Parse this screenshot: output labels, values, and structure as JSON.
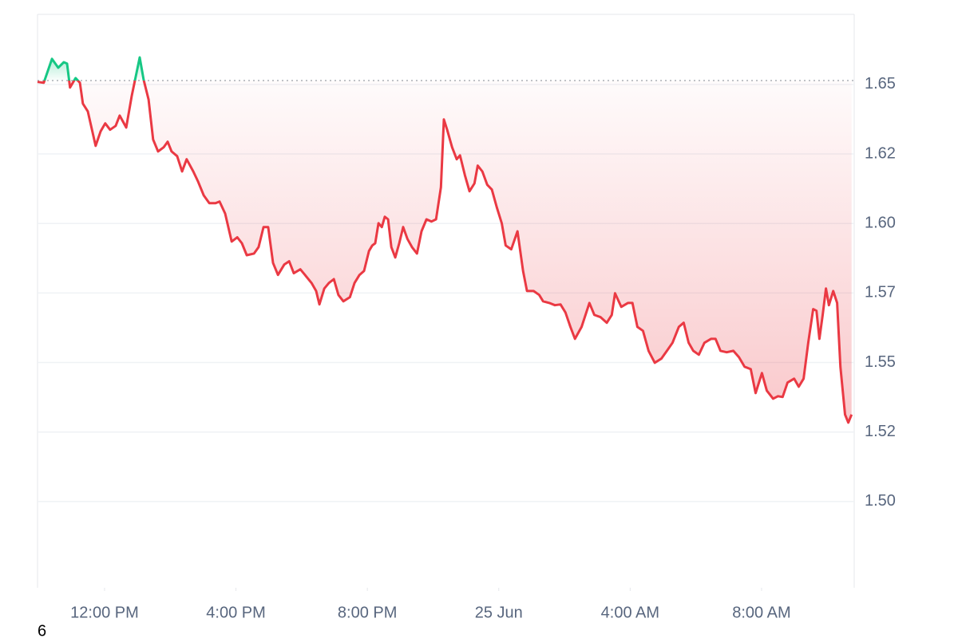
{
  "chart_data": {
    "type": "line",
    "x": [
      9.96,
      10.15,
      10.4,
      10.59,
      10.76,
      10.86,
      10.95,
      11.12,
      11.25,
      11.34,
      11.49,
      11.73,
      11.88,
      12.02,
      12.17,
      12.34,
      12.46,
      12.66,
      12.83,
      13.07,
      13.19,
      13.34,
      13.48,
      13.63,
      13.8,
      13.92,
      14.04,
      14.21,
      14.36,
      14.5,
      14.7,
      14.85,
      15.02,
      15.19,
      15.38,
      15.5,
      15.67,
      15.87,
      16.04,
      16.18,
      16.33,
      16.55,
      16.69,
      16.84,
      16.98,
      17.13,
      17.28,
      17.47,
      17.62,
      17.76,
      17.96,
      18.1,
      18.3,
      18.44,
      18.54,
      18.69,
      18.83,
      18.98,
      19.12,
      19.27,
      19.47,
      19.61,
      19.76,
      19.9,
      20.05,
      20.15,
      20.24,
      20.34,
      20.44,
      20.53,
      20.63,
      20.73,
      20.85,
      20.97,
      21.09,
      21.22,
      21.36,
      21.51,
      21.65,
      21.8,
      21.95,
      22.09,
      22.24,
      22.33,
      22.43,
      22.58,
      22.72,
      22.82,
      22.97,
      23.11,
      23.26,
      23.36,
      23.5,
      23.65,
      23.79,
      23.94,
      24.09,
      24.21,
      24.38,
      24.57,
      24.74,
      24.86,
      25.06,
      25.23,
      25.35,
      25.54,
      25.71,
      25.88,
      26.03,
      26.18,
      26.32,
      26.52,
      26.76,
      26.91,
      27.1,
      27.29,
      27.44,
      27.54,
      27.73,
      27.93,
      28.07,
      28.22,
      28.39,
      28.56,
      28.75,
      28.95,
      29.12,
      29.29,
      29.48,
      29.63,
      29.78,
      29.92,
      30.09,
      30.26,
      30.46,
      30.6,
      30.75,
      30.94,
      31.14,
      31.31,
      31.48,
      31.67,
      31.82,
      32.01,
      32.16,
      32.35,
      32.5,
      32.64,
      32.79,
      32.99,
      33.13,
      33.28,
      33.42,
      33.57,
      33.67,
      33.76,
      33.86,
      33.96,
      34.05,
      34.18,
      34.3,
      34.4,
      34.54,
      34.64,
      34.74
    ],
    "values": [
      1.6509,
      1.6506,
      1.6592,
      1.656,
      1.658,
      1.6575,
      1.6489,
      1.6523,
      1.6506,
      1.6431,
      1.6403,
      1.6279,
      1.6331,
      1.636,
      1.6337,
      1.6351,
      1.6388,
      1.6345,
      1.646,
      1.6597,
      1.6517,
      1.6446,
      1.6302,
      1.6259,
      1.6274,
      1.6294,
      1.6259,
      1.6242,
      1.6187,
      1.6231,
      1.6187,
      1.615,
      1.6101,
      1.6073,
      1.6073,
      1.6079,
      1.6036,
      1.5935,
      1.595,
      1.5929,
      1.5886,
      1.5892,
      1.5915,
      1.5987,
      1.5987,
      1.5858,
      1.5815,
      1.5852,
      1.5864,
      1.5821,
      1.5835,
      1.5815,
      1.5786,
      1.5757,
      1.5709,
      1.5766,
      1.5786,
      1.58,
      1.5743,
      1.572,
      1.5735,
      1.5786,
      1.5815,
      1.5829,
      1.5901,
      1.5921,
      1.5929,
      1.6001,
      1.5987,
      1.6024,
      1.6015,
      1.5915,
      1.5878,
      1.5929,
      1.5987,
      1.5944,
      1.5915,
      1.5892,
      1.5972,
      1.6015,
      1.6007,
      1.6015,
      1.613,
      1.6374,
      1.6337,
      1.6274,
      1.6231,
      1.6245,
      1.6173,
      1.6116,
      1.6144,
      1.6208,
      1.6187,
      1.6139,
      1.6122,
      1.6058,
      1.6001,
      1.5921,
      1.5907,
      1.5972,
      1.5829,
      1.5757,
      1.5757,
      1.5743,
      1.572,
      1.5714,
      1.5706,
      1.5709,
      1.568,
      1.5628,
      1.5585,
      1.5628,
      1.5714,
      1.5671,
      1.5663,
      1.5643,
      1.5671,
      1.5749,
      1.57,
      1.5714,
      1.5714,
      1.5628,
      1.5614,
      1.5542,
      1.5499,
      1.5514,
      1.5542,
      1.5571,
      1.5628,
      1.5643,
      1.5571,
      1.5542,
      1.5528,
      1.5571,
      1.5585,
      1.5585,
      1.5542,
      1.5537,
      1.5542,
      1.5519,
      1.5485,
      1.5476,
      1.539,
      1.5462,
      1.5399,
      1.537,
      1.5379,
      1.5376,
      1.5428,
      1.5442,
      1.5413,
      1.5442,
      1.5571,
      1.5692,
      1.5686,
      1.5585,
      1.5671,
      1.5766,
      1.5706,
      1.5757,
      1.5714,
      1.5485,
      1.5313,
      1.5284,
      1.5313
    ],
    "xlim": [
      9.96,
      34.82
    ],
    "ylim": [
      1.469,
      1.6752
    ],
    "xticks": [
      {
        "value": 12,
        "label": "12:00 PM"
      },
      {
        "value": 16,
        "label": "4:00 PM"
      },
      {
        "value": 20,
        "label": "8:00 PM"
      },
      {
        "value": 24,
        "label": "25 Jun"
      },
      {
        "value": 28,
        "label": "4:00 AM"
      },
      {
        "value": 32,
        "label": "8:00 AM"
      }
    ],
    "yticks": [
      1.65,
      {
        "value": 1.625,
        "label": "1.62"
      },
      {
        "value": 1.6,
        "label": "1.60"
      },
      {
        "value": 1.575,
        "label": "1.57"
      },
      1.55,
      {
        "value": 1.525,
        "label": "1.52"
      },
      {
        "value": 1.5,
        "label": "1.50"
      }
    ],
    "baseline": 1.6514,
    "up_color": "#16c784",
    "down_color": "#ea3943",
    "grid": true,
    "corner_label": "6"
  }
}
